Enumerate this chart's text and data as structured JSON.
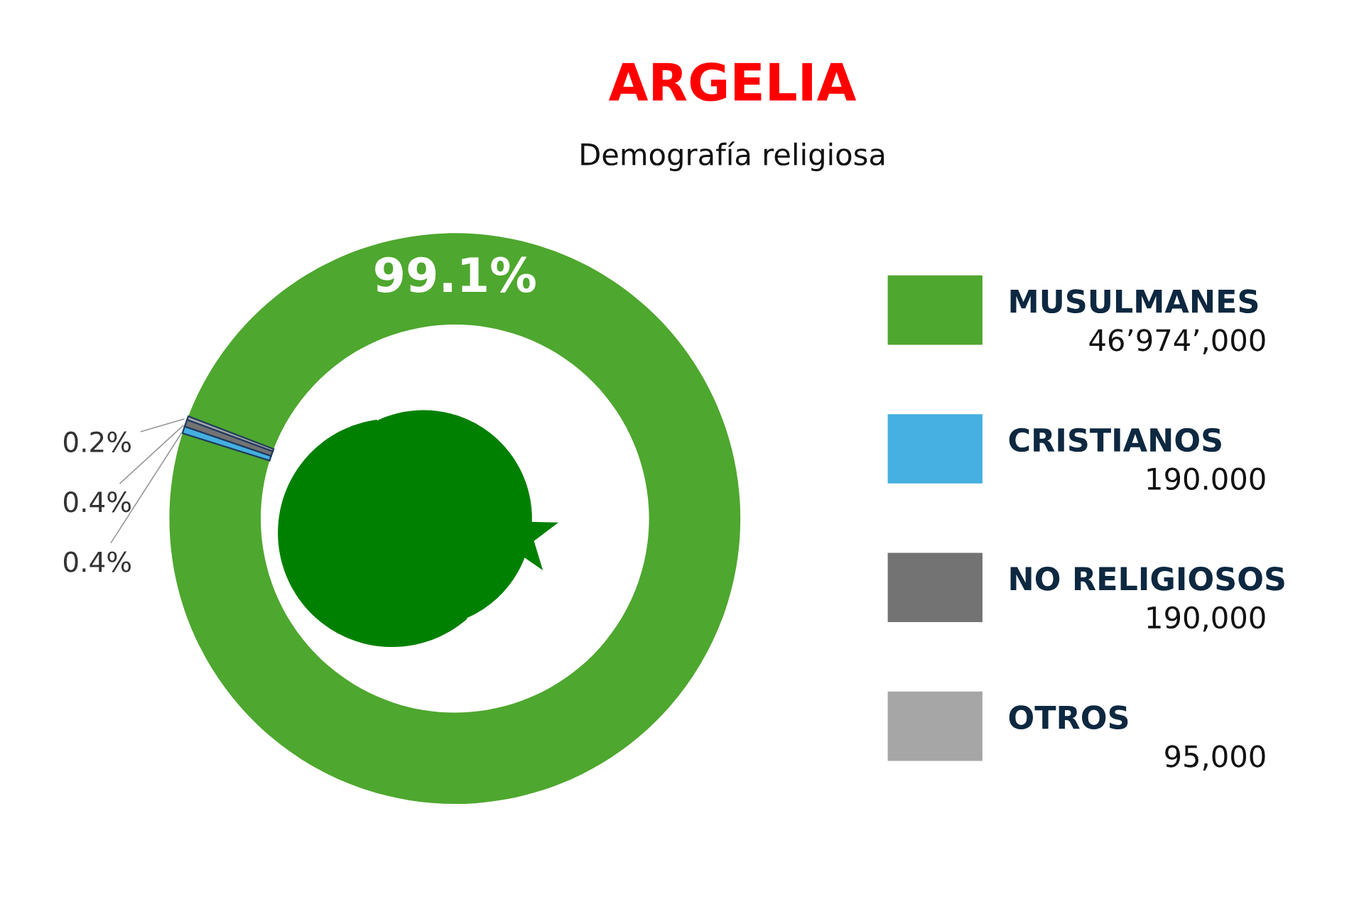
{
  "chart_data": {
    "type": "donut",
    "title": "ARGELIA",
    "subtitle": "Demografía religiosa",
    "categories": [
      "MUSULMANES",
      "CRISTIANOS",
      "NO RELIGIOSOS",
      "OTROS"
    ],
    "values": [
      99.1,
      0.4,
      0.4,
      0.2
    ],
    "colors": [
      "#4ea72e",
      "#45b0e1",
      "#737373",
      "#a6a6a6"
    ],
    "value_labels": [
      "99.1%",
      "0.4%",
      "0.4%",
      "0.2%"
    ],
    "annotations": [
      "46’974’,000",
      "190.000",
      "190,000",
      "95,000"
    ],
    "legend": "right"
  }
}
